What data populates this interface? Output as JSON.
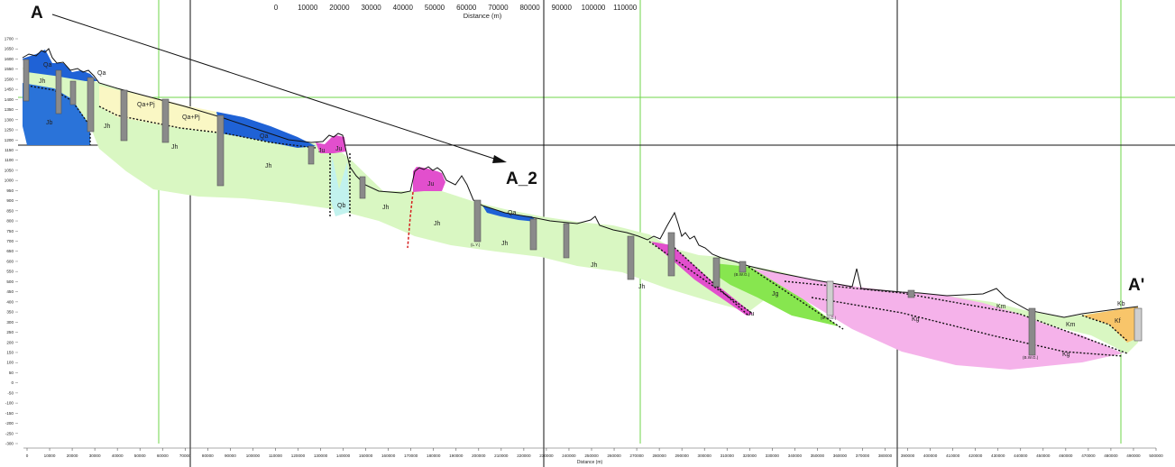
{
  "markers": {
    "a": "A",
    "a2": "A_2",
    "a_prime": "A'"
  },
  "top_axis": {
    "ticks": [
      "0",
      "10000",
      "20000",
      "30000",
      "40000",
      "50000",
      "60000",
      "70000",
      "80000",
      "90000",
      "100000",
      "110000"
    ],
    "title": "Distance (m)"
  },
  "bottom_axis": {
    "ticks": [
      "0",
      "10000",
      "20000",
      "30000",
      "40000",
      "50000",
      "60000",
      "70000",
      "80000",
      "90000",
      "100000",
      "110000",
      "120000",
      "130000",
      "140000",
      "150000",
      "160000",
      "170000",
      "180000",
      "190000",
      "200000",
      "210000",
      "220000",
      "230000",
      "240000",
      "250000",
      "260000",
      "270000",
      "280000",
      "290000",
      "300000",
      "310000",
      "320000",
      "330000",
      "340000",
      "350000",
      "360000",
      "370000",
      "380000",
      "390000",
      "400000",
      "410000",
      "420000",
      "430000",
      "440000",
      "450000",
      "460000",
      "470000",
      "480000",
      "490000",
      "500000"
    ],
    "title": "Distance (m)"
  },
  "left_axis": {
    "ticks": [
      "1700",
      "1650",
      "1600",
      "1550",
      "1500",
      "1450",
      "1400",
      "1350",
      "1300",
      "1250",
      "1200",
      "1150",
      "1100",
      "1050",
      "1000",
      "950",
      "900",
      "850",
      "800",
      "750",
      "700",
      "650",
      "600",
      "550",
      "500",
      "450",
      "400",
      "350",
      "300",
      "250",
      "200",
      "150",
      "100",
      "50",
      "0",
      "-50",
      "-100",
      "-150",
      "-200",
      "-250",
      "-300"
    ]
  },
  "units": {
    "qa1": "Qa",
    "qa2": "Qa",
    "qa3": "Qa",
    "qa4": "Qa",
    "jh1": "Jh",
    "jh2": "Jh",
    "jh3": "Jh",
    "jh4": "Jh",
    "jh5": "Jh",
    "jh6": "Jh",
    "jh7": "Jh",
    "jh8": "Jh",
    "jh9": "Jh",
    "jb": "Jb",
    "qapj1": "Qa+Pj",
    "qapj2": "Qa+Pj",
    "ju1": "Ju",
    "ju2": "Ju",
    "ju3": "Ju",
    "ju4": "Ju",
    "qb": "Qb",
    "jg": "Jg",
    "kg1": "Kg",
    "kg2": "Kg",
    "km1": "Km",
    "km2": "Km",
    "kb": "Kb",
    "kf": "Kf"
  },
  "well_notes": {
    "n1": "(L.Y.)",
    "n2": "(B.W.G.)",
    "n3": "(B.W.G.)",
    "n4": "(B.W.G.)"
  },
  "colors": {
    "jh_green": "#d9f7c2",
    "qa_blue": "#1f62d6",
    "jb_blue": "#2a73d9",
    "pj_yellow": "#faf7c4",
    "ju_magenta": "#e24fcd",
    "qb_cyan": "#c2f2ee",
    "jg_green": "#87e64f",
    "kg_pink": "#f5b2ea",
    "kf_orange": "#f8c56a",
    "gridline_green": "#6fd64a",
    "profile_line": "#111111"
  }
}
